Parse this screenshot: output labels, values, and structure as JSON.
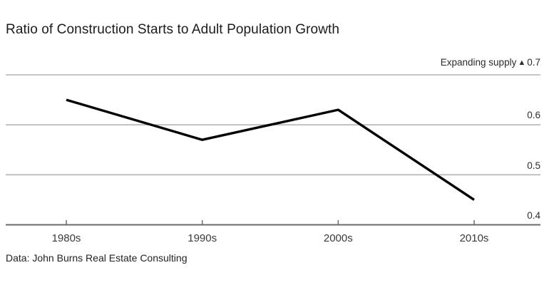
{
  "page": {
    "background_color": "#ffffff"
  },
  "title": "Ratio of Construction Starts to Adult Population Growth",
  "annotation": {
    "label": "Expanding supply",
    "marker": "▲",
    "value": "0.7"
  },
  "footer": "Data: John Burns Real Estate Consulting",
  "chart_data": {
    "type": "line",
    "title": "Ratio of Construction Starts to Adult Population Growth",
    "categories": [
      "1980s",
      "1990s",
      "2000s",
      "2010s"
    ],
    "values": [
      0.65,
      0.57,
      0.63,
      0.45
    ],
    "xlabel": "",
    "ylabel": "",
    "ylim": [
      0.4,
      0.7
    ],
    "yticks": [
      {
        "value": 0.7,
        "label": ""
      },
      {
        "value": 0.6,
        "label": "0.6"
      },
      {
        "value": 0.5,
        "label": "0.5"
      },
      {
        "value": 0.4,
        "label": "0.4"
      }
    ],
    "top_gridline_annotation": "Expanding supply ▲ 0.7",
    "grid": "horizontal",
    "legend": "none",
    "line_color": "#000000",
    "gridline_color": "#b3b3b3",
    "axis_line_color": "#6b6b6b",
    "text_color": "#2e2e2e"
  }
}
